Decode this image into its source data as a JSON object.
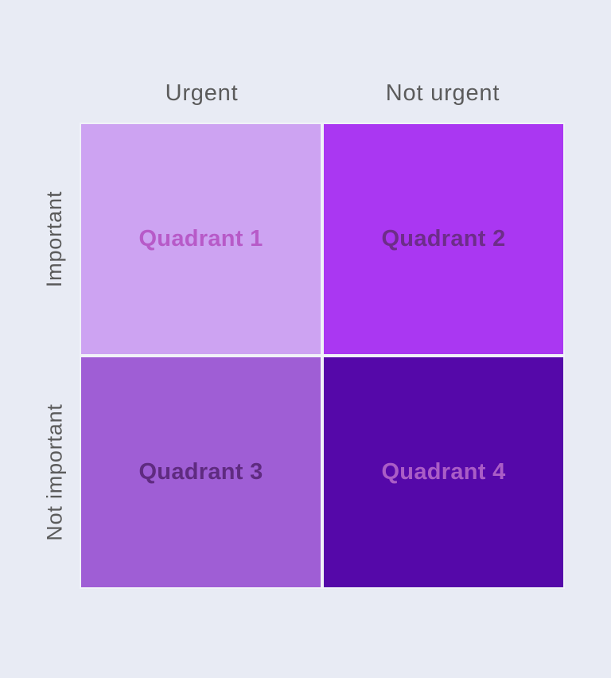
{
  "page": {
    "background": "#e8ebf4"
  },
  "matrix": {
    "type": "priority-matrix-2x2",
    "axis_label_color": "#5b5b5b",
    "column_headers": [
      {
        "label": "Urgent"
      },
      {
        "label": "Not urgent"
      }
    ],
    "row_headers": [
      {
        "label": "Important"
      },
      {
        "label": "Not important"
      }
    ],
    "quadrants": [
      {
        "label": "Quadrant 1",
        "row": "Important",
        "column": "Urgent",
        "fill": "#cda3f2",
        "label_color": "#b75ac8"
      },
      {
        "label": "Quadrant 2",
        "row": "Important",
        "column": "Not urgent",
        "fill": "#aa37f2",
        "label_color": "#6d2d89"
      },
      {
        "label": "Quadrant 3",
        "row": "Not important",
        "column": "Urgent",
        "fill": "#9f5ed5",
        "label_color": "#5f2b80"
      },
      {
        "label": "Quadrant 4",
        "row": "Not important",
        "column": "Not urgent",
        "fill": "#5508a9",
        "label_color": "#aa5dc6"
      }
    ]
  }
}
